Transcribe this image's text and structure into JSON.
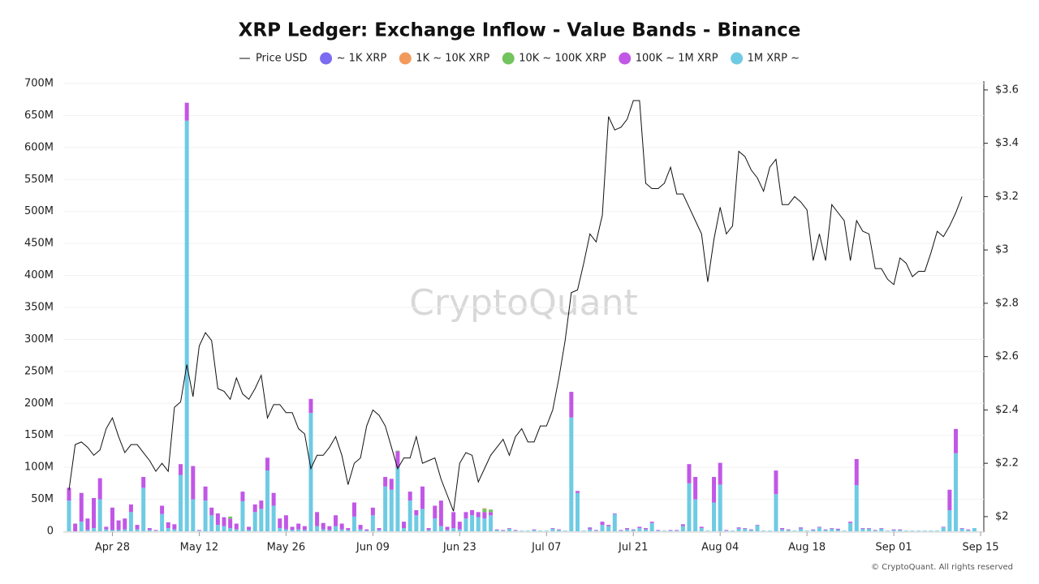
{
  "chart_data": {
    "type": "bar",
    "title": "XRP Ledger: Exchange Inflow - Value Bands - Binance",
    "watermark": "CryptoQuant",
    "footer": "© CryptoQuant. All rights reserved",
    "grid": true,
    "legend": "top",
    "categories": [
      null,
      null,
      null,
      null,
      null,
      null,
      null,
      "Apr 28",
      null,
      null,
      null,
      null,
      null,
      null,
      null,
      null,
      null,
      null,
      null,
      null,
      null,
      "May 12",
      null,
      null,
      null,
      null,
      null,
      null,
      null,
      null,
      null,
      null,
      null,
      null,
      null,
      "May 26",
      null,
      null,
      null,
      null,
      null,
      null,
      null,
      null,
      null,
      null,
      null,
      null,
      null,
      "Jun 09",
      null,
      null,
      null,
      null,
      null,
      null,
      null,
      null,
      null,
      null,
      null,
      null,
      null,
      "Jun 23",
      null,
      null,
      null,
      null,
      null,
      null,
      null,
      null,
      null,
      null,
      null,
      null,
      null,
      "Jul 07",
      null,
      null,
      null,
      null,
      null,
      null,
      null,
      null,
      null,
      null,
      null,
      null,
      null,
      "Jul 21",
      null,
      null,
      null,
      null,
      null,
      null,
      null,
      null,
      null,
      null,
      null,
      null,
      null,
      "Aug 04",
      null,
      null,
      null,
      null,
      null,
      null,
      null,
      null,
      null,
      null,
      null,
      null,
      null,
      "Aug 18",
      null,
      null,
      null,
      null,
      null,
      null,
      null,
      null,
      null,
      null,
      null,
      null,
      null,
      "Sep 01",
      null,
      null,
      null,
      null,
      null,
      null,
      null,
      null,
      null,
      null,
      null,
      null,
      null,
      "Sep 15"
    ],
    "ylim": [
      0,
      700000000
    ],
    "yticks": [
      0,
      {
        "value": 50000000,
        "label": "50M"
      },
      {
        "value": 100000000,
        "label": "100M"
      },
      {
        "value": 150000000,
        "label": "150M"
      },
      {
        "value": 200000000,
        "label": "200M"
      },
      {
        "value": 250000000,
        "label": "250M"
      },
      {
        "value": 300000000,
        "label": "300M"
      },
      {
        "value": 350000000,
        "label": "350M"
      },
      {
        "value": 400000000,
        "label": "400M"
      },
      {
        "value": 450000000,
        "label": "450M"
      },
      {
        "value": 500000000,
        "label": "500M"
      },
      {
        "value": 550000000,
        "label": "550M"
      },
      {
        "value": 600000000,
        "label": "600M"
      },
      {
        "value": 650000000,
        "label": "650M"
      },
      {
        "value": 700000000,
        "label": "700M"
      }
    ],
    "y2lim": [
      1.945,
      3.624
    ],
    "y2ticks": [
      {
        "value": 2,
        "label": "$2"
      },
      {
        "value": 2.2,
        "label": "$2.2"
      },
      {
        "value": 2.4,
        "label": "$2.4"
      },
      {
        "value": 2.6,
        "label": "$2.6"
      },
      {
        "value": 2.8,
        "label": "$2.8"
      },
      {
        "value": 3,
        "label": "$3"
      },
      {
        "value": 3.2,
        "label": "$3.2"
      },
      {
        "value": 3.4,
        "label": "$3.4"
      },
      {
        "value": 3.6,
        "label": "$3.6"
      }
    ],
    "series": [
      {
        "name": "Price USD",
        "type": "line",
        "axis": "y2",
        "color": "#111111",
        "values": [
          2.1,
          2.27,
          2.28,
          2.26,
          2.23,
          2.25,
          2.33,
          2.37,
          2.3,
          2.24,
          2.27,
          2.27,
          2.24,
          2.21,
          2.17,
          2.2,
          2.17,
          2.41,
          2.43,
          2.57,
          2.45,
          2.64,
          2.69,
          2.66,
          2.48,
          2.47,
          2.44,
          2.52,
          2.46,
          2.44,
          2.48,
          2.53,
          2.37,
          2.42,
          2.42,
          2.39,
          2.39,
          2.33,
          2.31,
          2.18,
          2.23,
          2.23,
          2.26,
          2.3,
          2.23,
          2.12,
          2.2,
          2.22,
          2.34,
          2.4,
          2.38,
          2.34,
          2.26,
          2.18,
          2.22,
          2.22,
          2.3,
          2.2,
          2.21,
          2.22,
          2.14,
          2.08,
          2.02,
          2.2,
          2.24,
          2.23,
          2.13,
          2.18,
          2.23,
          2.26,
          2.29,
          2.23,
          2.3,
          2.33,
          2.28,
          2.28,
          2.34,
          2.34,
          2.4,
          2.52,
          2.66,
          2.84,
          2.85,
          2.95,
          3.06,
          3.03,
          3.13,
          3.5,
          3.45,
          3.46,
          3.49,
          3.56,
          3.56,
          3.25,
          3.23,
          3.23,
          3.25,
          3.31,
          3.21,
          3.21,
          3.16,
          3.11,
          3.06,
          2.88,
          3.04,
          3.16,
          3.06,
          3.09,
          3.37,
          3.35,
          3.3,
          3.27,
          3.22,
          3.31,
          3.34,
          3.17,
          3.17,
          3.2,
          3.18,
          3.15,
          2.96,
          3.06,
          2.96,
          3.17,
          3.14,
          3.11,
          2.96,
          3.11,
          3.07,
          3.06,
          2.93,
          2.93,
          2.89,
          2.87,
          2.97,
          2.95,
          2.9,
          2.92,
          2.92,
          2.99,
          3.07,
          3.05,
          3.09,
          3.14,
          3.2,
          null,
          null,
          null
        ]
      },
      {
        "name": "~ 1K XRP",
        "color": "#7b6cf0",
        "values": [
          0,
          0,
          0,
          0,
          0,
          0,
          0,
          0,
          0,
          0,
          0,
          0,
          0,
          0,
          0,
          0,
          0,
          0,
          0,
          0,
          0,
          0,
          0,
          0,
          0,
          0,
          0,
          0,
          0,
          0,
          0,
          0,
          0,
          0,
          0,
          0,
          0,
          0,
          0,
          0,
          0,
          0,
          0,
          0,
          0,
          0,
          0,
          0,
          0,
          0,
          0,
          0,
          0,
          0,
          0,
          0,
          0,
          0,
          0,
          0,
          0,
          0,
          0,
          0,
          0,
          0,
          0,
          0,
          0,
          0,
          0,
          0,
          0,
          0,
          0,
          0,
          0,
          0,
          0,
          0,
          0,
          0,
          0,
          0,
          1000000.0,
          0,
          0,
          0,
          0,
          0,
          0,
          0,
          0,
          0,
          0,
          0,
          0,
          0,
          0,
          1000000.0,
          0,
          0,
          0,
          0,
          0,
          0,
          0,
          0,
          1000000.0,
          0,
          0,
          0,
          0,
          0,
          0,
          0,
          0,
          0,
          1000000.0,
          0,
          0,
          0,
          0,
          0,
          1000000.0,
          0,
          0,
          0,
          0,
          0,
          1000000.0,
          0,
          0,
          0,
          0,
          0,
          0,
          0,
          0,
          0,
          0,
          0,
          0,
          0,
          0,
          0,
          0,
          null
        ]
      },
      {
        "name": "1K ~ 10K XRP",
        "color": "#f29a5c",
        "values": [
          0,
          0,
          0,
          0,
          0,
          0,
          0,
          0,
          0,
          0,
          0,
          0,
          0,
          0,
          0,
          0,
          0,
          0,
          0,
          0,
          0,
          0,
          0,
          0,
          0,
          0,
          0,
          0,
          0,
          0,
          0,
          0,
          0,
          0,
          0,
          0,
          0,
          0,
          0,
          0,
          0,
          0,
          0,
          0,
          0,
          0,
          0,
          0,
          0,
          0,
          0,
          0,
          0,
          0,
          0,
          0,
          0,
          0,
          0,
          0,
          0,
          0,
          0,
          0,
          0,
          0,
          0,
          1000000.0,
          0,
          0,
          0,
          0,
          0,
          0,
          0,
          0,
          0,
          0,
          0,
          0,
          0,
          0,
          0,
          0,
          0,
          0,
          0,
          0,
          0,
          0,
          0,
          0,
          0,
          0,
          0,
          0,
          0,
          0,
          0,
          0,
          0,
          0,
          0,
          0,
          0,
          0,
          0,
          0,
          0,
          0,
          0,
          0,
          0,
          0,
          0,
          0,
          0,
          0,
          0,
          0,
          0,
          0,
          0,
          0,
          0,
          0,
          0,
          0,
          0,
          0,
          0,
          0,
          0,
          0,
          0,
          0,
          0,
          0,
          0,
          0,
          0,
          0,
          0,
          0,
          0,
          0,
          0,
          null
        ]
      },
      {
        "name": "10K ~ 100K XRP",
        "color": "#72c45e",
        "values": [
          0,
          0,
          0,
          0,
          0,
          0,
          0,
          0,
          0,
          0,
          0,
          0,
          0,
          0,
          0,
          0,
          0,
          0,
          0,
          0,
          0,
          0,
          0,
          0,
          0,
          0,
          3000000.0,
          0,
          0,
          0,
          0,
          0,
          0,
          0,
          0,
          0,
          0,
          0,
          0,
          0,
          0,
          0,
          0,
          0,
          0,
          0,
          0,
          0,
          0,
          0,
          0,
          0,
          0,
          1000000.0,
          0,
          0,
          0,
          0,
          0,
          0,
          0,
          0,
          0,
          0,
          0,
          0,
          0,
          5000000.0,
          4000000.0,
          0,
          0,
          0,
          0,
          0,
          0,
          0,
          0,
          0,
          0,
          0,
          0,
          0,
          0,
          0,
          0,
          0,
          0,
          0,
          0,
          0,
          0,
          0,
          0,
          0,
          0,
          0,
          0,
          0,
          0,
          0,
          0,
          0,
          0,
          0,
          0,
          0,
          0,
          0,
          0,
          0,
          0,
          0,
          0,
          0,
          0,
          0,
          0,
          0,
          0,
          0,
          0,
          0,
          0,
          0,
          0,
          0,
          0,
          0,
          0,
          0,
          0,
          0,
          0,
          0,
          0,
          0,
          0,
          0,
          0,
          0,
          0,
          0,
          0,
          0,
          0,
          0,
          0,
          null
        ]
      },
      {
        "name": "100K ~ 1M XRP",
        "color": "#c157e6",
        "values": [
          20000000.0,
          12000000.0,
          45000000.0,
          18000000.0,
          47000000.0,
          33000000.0,
          4000000.0,
          35000000.0,
          15000000.0,
          17000000.0,
          12000000.0,
          7000000.0,
          17000000.0,
          3000000.0,
          1000000.0,
          13000000.0,
          9000000.0,
          8000000.0,
          17000000.0,
          28000000.0,
          52000000.0,
          1000000.0,
          22000000.0,
          12000000.0,
          18000000.0,
          14000000.0,
          15000000.0,
          9000000.0,
          15000000.0,
          5000000.0,
          12000000.0,
          13000000.0,
          20000000.0,
          20000000.0,
          15000000.0,
          22000000.0,
          5000000.0,
          9000000.0,
          6000000.0,
          22000000.0,
          22000000.0,
          10000000.0,
          6000000.0,
          17000000.0,
          9000000.0,
          3000000.0,
          22000000.0,
          7000000.0,
          2000000.0,
          12000000.0,
          3000000.0,
          15000000.0,
          17000000.0,
          25000000.0,
          10000000.0,
          14000000.0,
          8000000.0,
          35000000.0,
          3000000.0,
          20000000.0,
          40000000.0,
          5000000.0,
          25000000.0,
          12000000.0,
          10000000.0,
          8000000.0,
          8000000.0,
          10000000.0,
          5000000.0,
          1000000.0,
          1000000.0,
          1000000.0,
          1000000.0,
          0,
          0,
          1000000.0,
          0,
          0,
          1000000.0,
          1000000.0,
          0,
          40000000.0,
          3000000.0,
          0,
          2000000.0,
          1000000.0,
          5000000.0,
          2000000.0,
          1000000.0,
          1000000.0,
          2000000.0,
          1000000.0,
          2000000.0,
          2000000.0,
          2000000.0,
          1000000.0,
          0,
          1000000.0,
          1000000.0,
          2000000.0,
          30000000.0,
          35000000.0,
          2000000.0,
          0,
          40000000.0,
          34000000.0,
          1000000.0,
          0,
          1000000.0,
          1000000.0,
          1000000.0,
          1000000.0,
          0,
          0,
          37000000.0,
          2000000.0,
          1000000.0,
          0,
          1000000.0,
          0,
          1000000.0,
          1000000.0,
          1000000.0,
          1000000.0,
          1000000.0,
          0,
          2000000.0,
          41000000.0,
          1000000.0,
          1000000.0,
          0,
          1000000.0,
          0,
          1000000.0,
          1000000.0,
          0,
          0,
          0,
          0,
          0,
          0,
          1000000.0,
          32000000.0,
          38000000.0,
          1000000.0,
          1000000.0,
          0,
          null
        ]
      },
      {
        "name": "1M XRP ~",
        "color": "#6ecbe3",
        "values": [
          48000000.0,
          0,
          15000000.0,
          2000000.0,
          5000000.0,
          50000000.0,
          3000000.0,
          2000000.0,
          2000000.0,
          3000000.0,
          30000000.0,
          3000000.0,
          68000000.0,
          2000000.0,
          1000000.0,
          27000000.0,
          5000000.0,
          3000000.0,
          88000000.0,
          642000000.0,
          50000000.0,
          1000000.0,
          48000000.0,
          25000000.0,
          10000000.0,
          8000000.0,
          5000000.0,
          3000000.0,
          47000000.0,
          2000000.0,
          30000000.0,
          35000000.0,
          95000000.0,
          40000000.0,
          5000000.0,
          3000000.0,
          2000000.0,
          3000000.0,
          2000000.0,
          185000000.0,
          8000000.0,
          3000000.0,
          2000000.0,
          8000000.0,
          3000000.0,
          2000000.0,
          23000000.0,
          3000000.0,
          1000000.0,
          25000000.0,
          2000000.0,
          70000000.0,
          65000000.0,
          100000000.0,
          5000000.0,
          48000000.0,
          25000000.0,
          35000000.0,
          2000000.0,
          20000000.0,
          8000000.0,
          2000000.0,
          5000000.0,
          3000000.0,
          20000000.0,
          25000000.0,
          22000000.0,
          20000000.0,
          25000000.0,
          2000000.0,
          1000000.0,
          4000000.0,
          1000000.0,
          1000000.0,
          1000000.0,
          2000000.0,
          1000000.0,
          1000000.0,
          4000000.0,
          2000000.0,
          1000000.0,
          178000000.0,
          60000000.0,
          1000000.0,
          3000000.0,
          1000000.0,
          10000000.0,
          8000000.0,
          27000000.0,
          1000000.0,
          3000000.0,
          2000000.0,
          5000000.0,
          3000000.0,
          13000000.0,
          1000000.0,
          1000000.0,
          1000000.0,
          1000000.0,
          8000000.0,
          75000000.0,
          50000000.0,
          5000000.0,
          1000000.0,
          45000000.0,
          73000000.0,
          1000000.0,
          1000000.0,
          4000000.0,
          4000000.0,
          2000000.0,
          9000000.0,
          1000000.0,
          1000000.0,
          58000000.0,
          3000000.0,
          2000000.0,
          1000000.0,
          4000000.0,
          1000000.0,
          2000000.0,
          6000000.0,
          2000000.0,
          4000000.0,
          2000000.0,
          1000000.0,
          13000000.0,
          72000000.0,
          4000000.0,
          4000000.0,
          1000000.0,
          4000000.0,
          1000000.0,
          2000000.0,
          2000000.0,
          1000000.0,
          1000000.0,
          1000000.0,
          1000000.0,
          1000000.0,
          1000000.0,
          6000000.0,
          33000000.0,
          122000000.0,
          4000000.0,
          2000000.0,
          5000000.0,
          null
        ]
      }
    ]
  }
}
